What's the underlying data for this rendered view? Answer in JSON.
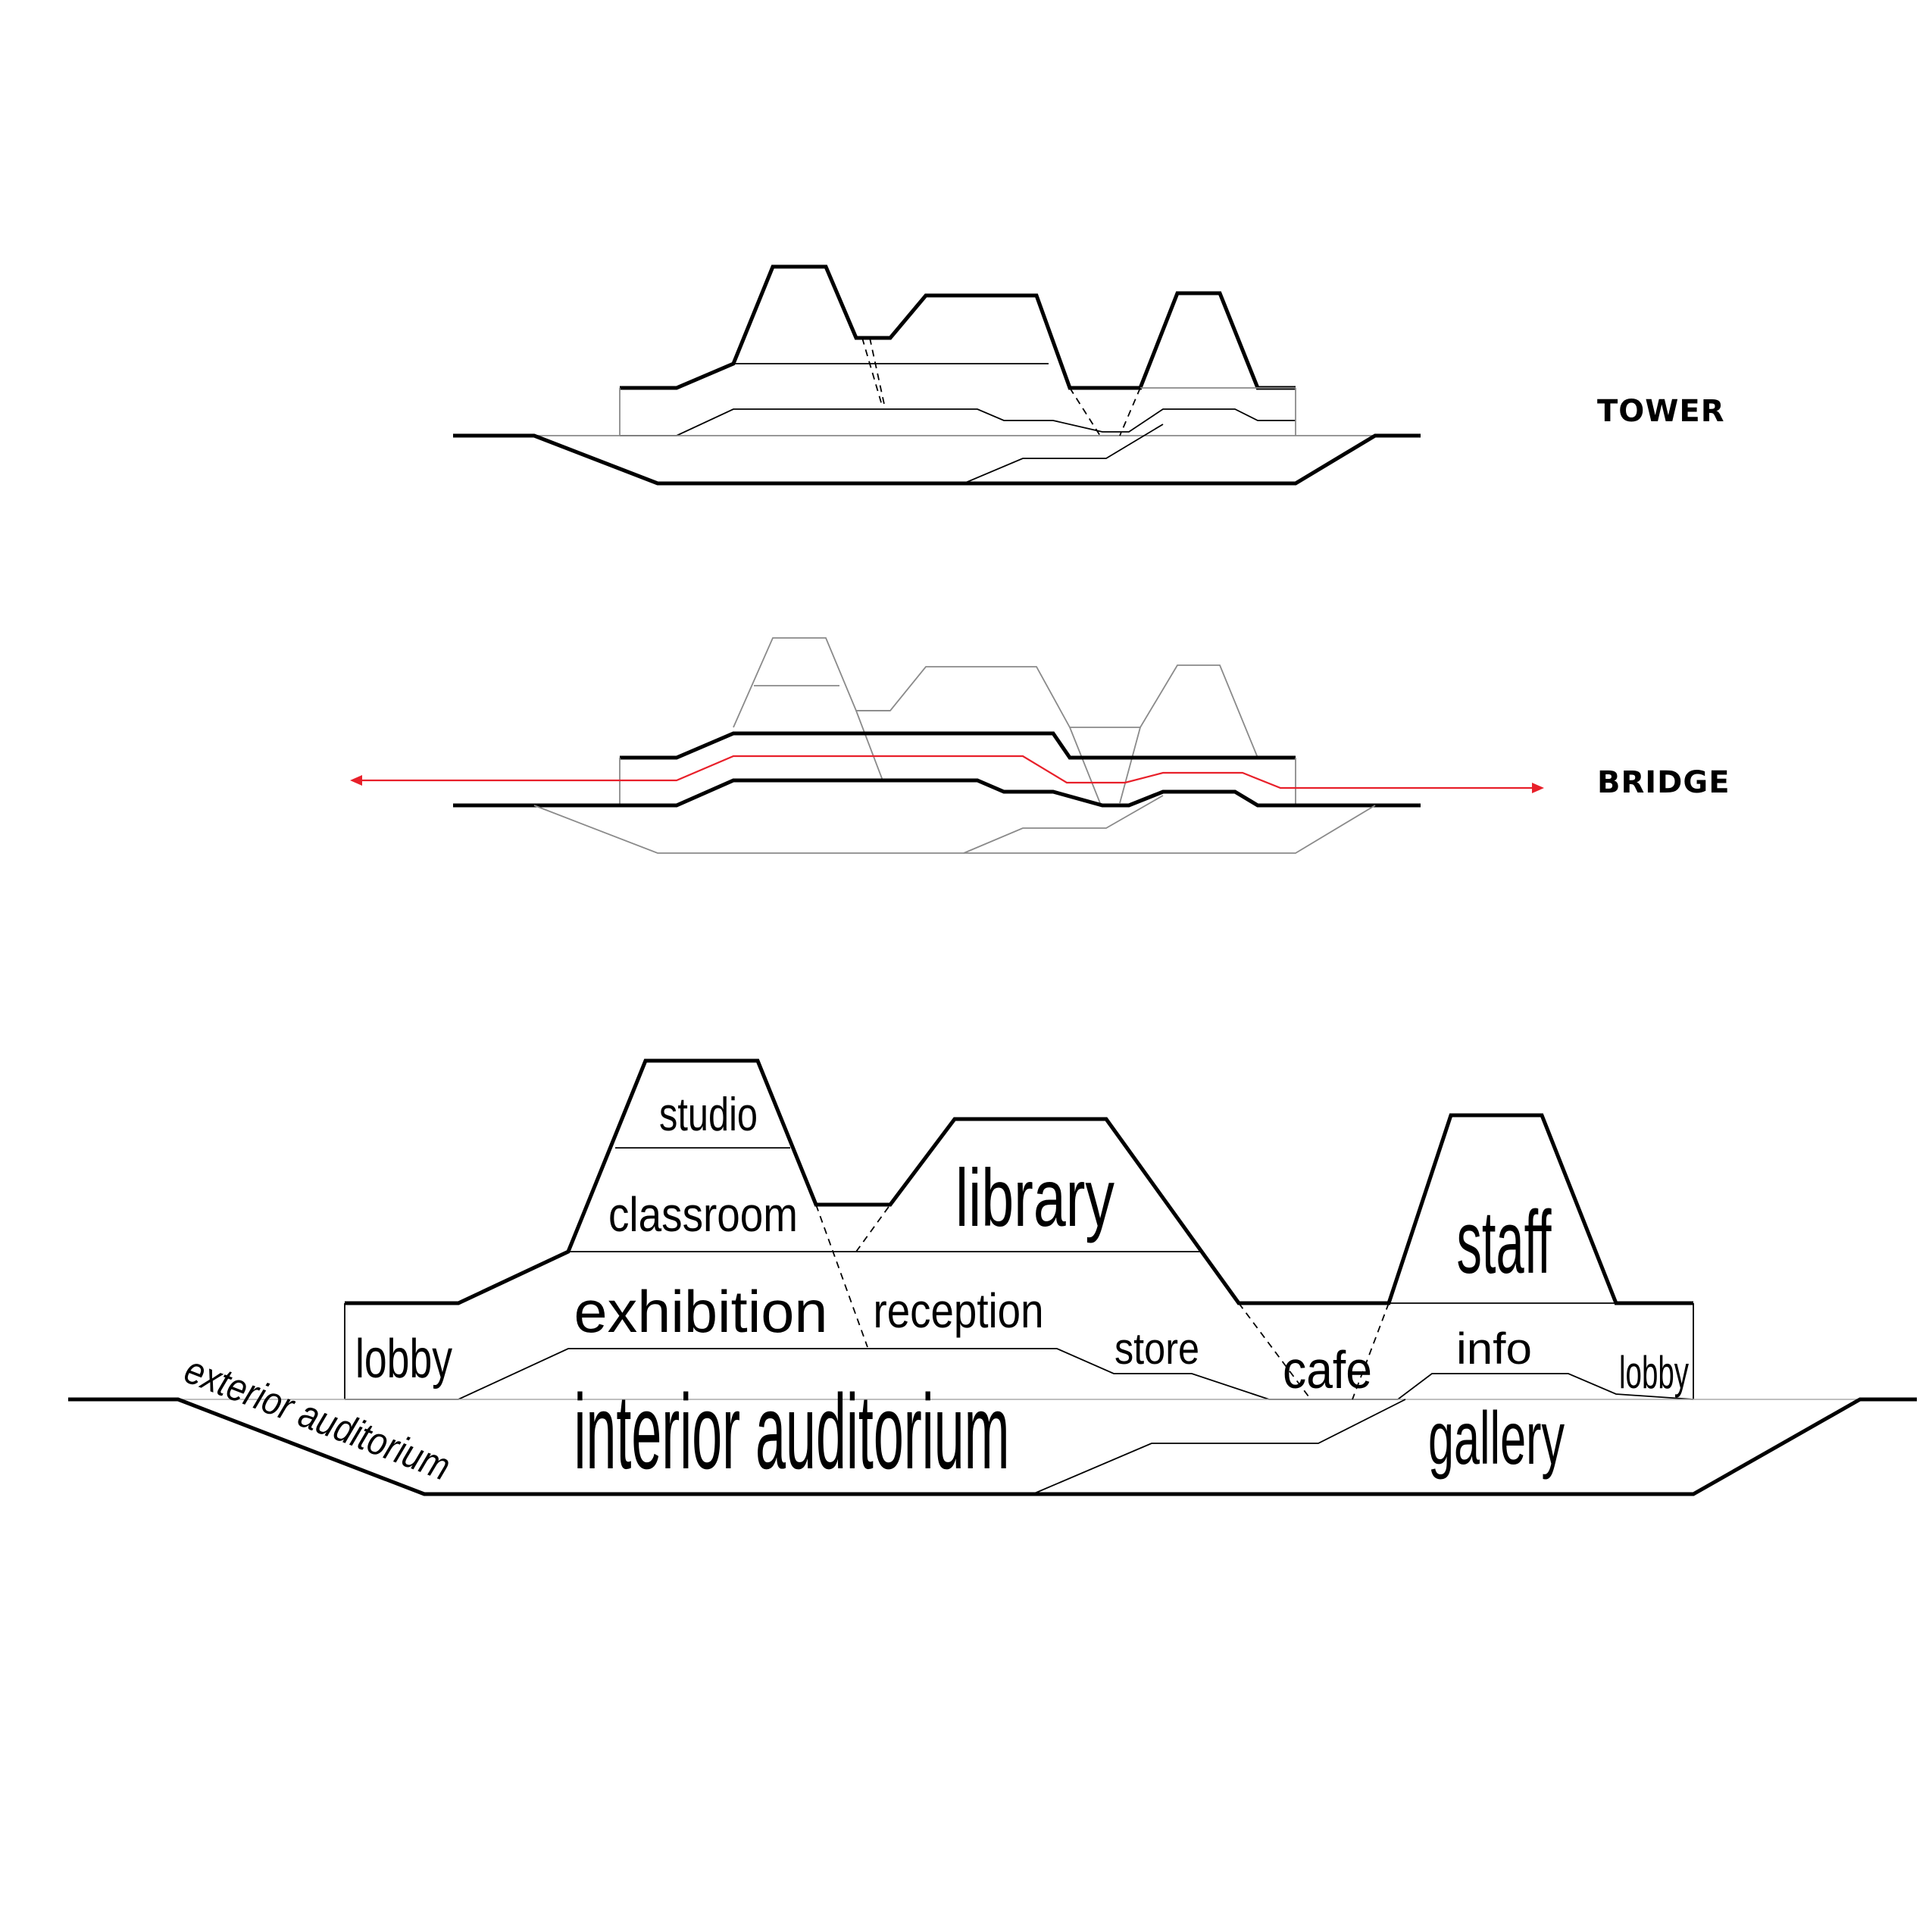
{
  "headings": {
    "tower": "TOWER",
    "bridge": "BRIDGE"
  },
  "rooms": {
    "studio": "studio",
    "classroom": "classroom",
    "library": "library",
    "staff": "staff",
    "exhibition": "exhibition",
    "reception": "reception",
    "store": "store",
    "cafe": "cafe",
    "info": "info",
    "lobby_left": "lobby",
    "lobby_right": "lobby",
    "interior_auditorium": "interior auditorium",
    "gallery": "gallery",
    "exterior_auditorium": "exterior auditorium"
  },
  "colors": {
    "line": "#000000",
    "circulation": "#e8202a",
    "ghost": "#8a8a8a"
  }
}
